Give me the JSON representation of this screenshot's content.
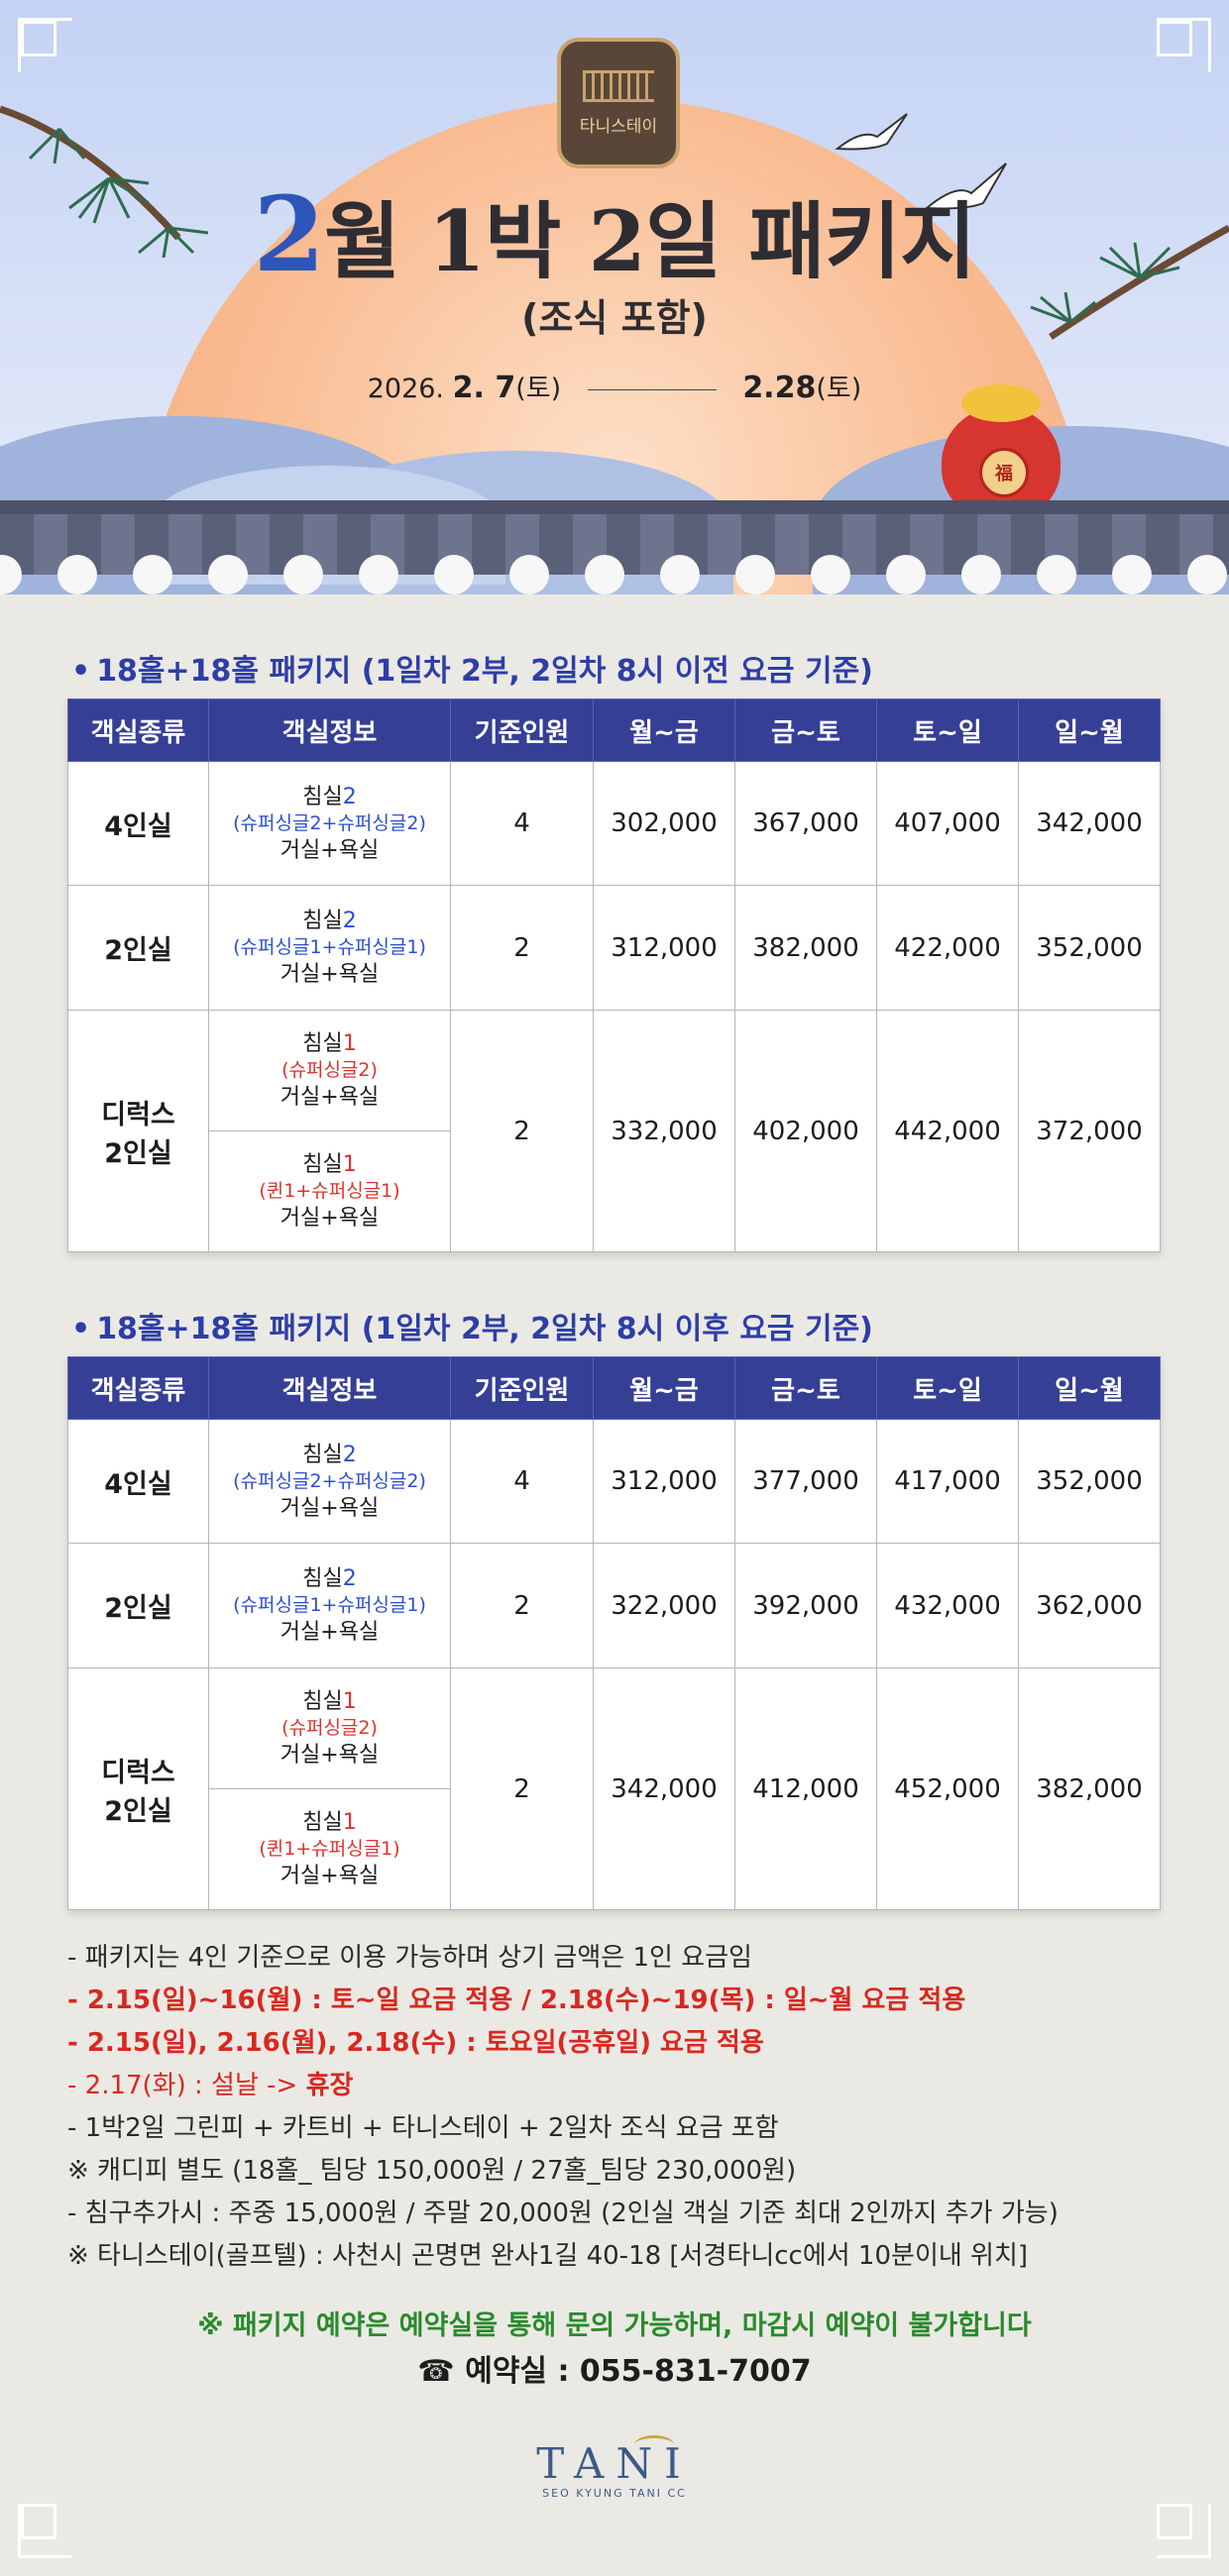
{
  "header": {
    "logo_text": "타니스테이",
    "title_num": "2",
    "title_rest": "월 1박 2일 패키지",
    "subtitle": "(조식 포함)",
    "date_start_prefix": "2026.",
    "date_start": "2. 7",
    "date_start_day": "(토)",
    "date_end": "2.28",
    "date_end_day": "(토)",
    "pouch_label": "福"
  },
  "table_headers": [
    "객실종류",
    "객실정보",
    "기준인원",
    "월~금",
    "금~토",
    "토~일",
    "일~월"
  ],
  "sections": [
    {
      "title": "18홀+18홀 패키지 (1일차 2부, 2일차 8시 이전 요금 기준)",
      "rows": [
        {
          "type": "4인실",
          "info_a": "침실",
          "info_n": "2",
          "info_sub": "(슈퍼싱글2+슈퍼싱글2)",
          "info_c": "거실+욕실",
          "people": "4",
          "prices": [
            "302,000",
            "367,000",
            "407,000",
            "342,000"
          ]
        },
        {
          "type": "2인실",
          "info_a": "침실",
          "info_n": "2",
          "info_sub": "(슈퍼싱글1+슈퍼싱글1)",
          "info_c": "거실+욕실",
          "people": "2",
          "prices": [
            "312,000",
            "382,000",
            "422,000",
            "352,000"
          ]
        },
        {
          "type_line1": "디럭스",
          "type_line2": "2인실",
          "info1_a": "침실",
          "info1_n": "1",
          "info1_sub": "(슈퍼싱글2)",
          "info1_c": "거실+욕실",
          "info2_a": "침실",
          "info2_n": "1",
          "info2_sub": "(퀸1+슈퍼싱글1)",
          "info2_c": "거실+욕실",
          "people": "2",
          "prices": [
            "332,000",
            "402,000",
            "442,000",
            "372,000"
          ]
        }
      ]
    },
    {
      "title": "18홀+18홀 패키지 (1일차 2부, 2일차 8시 이후 요금 기준)",
      "rows": [
        {
          "type": "4인실",
          "info_a": "침실",
          "info_n": "2",
          "info_sub": "(슈퍼싱글2+슈퍼싱글2)",
          "info_c": "거실+욕실",
          "people": "4",
          "prices": [
            "312,000",
            "377,000",
            "417,000",
            "352,000"
          ]
        },
        {
          "type": "2인실",
          "info_a": "침실",
          "info_n": "2",
          "info_sub": "(슈퍼싱글1+슈퍼싱글1)",
          "info_c": "거실+욕실",
          "people": "2",
          "prices": [
            "322,000",
            "392,000",
            "432,000",
            "362,000"
          ]
        },
        {
          "type_line1": "디럭스",
          "type_line2": "2인실",
          "info1_a": "침실",
          "info1_n": "1",
          "info1_sub": "(슈퍼싱글2)",
          "info1_c": "거실+욕실",
          "info2_a": "침실",
          "info2_n": "1",
          "info2_sub": "(퀸1+슈퍼싱글1)",
          "info2_c": "거실+욕실",
          "people": "2",
          "prices": [
            "342,000",
            "412,000",
            "452,000",
            "382,000"
          ]
        }
      ]
    }
  ],
  "notes": {
    "n1": "- 패키지는 4인 기준으로 이용 가능하며 상기 금액은 1인 요금임",
    "n2": "- 2.15(일)~16(월) : 토~일 요금 적용 / 2.18(수)~19(목) : 일~월 요금 적용",
    "n3": "- 2.15(일), 2.16(월), 2.18(수) : 토요일(공휴일) 요금 적용",
    "n4a": "- 2.17(화) : 설날 -> ",
    "n4b": "휴장",
    "n5": "- 1박2일 그린피 + 카트비 + 타니스테이 + 2일차 조식 요금 포함",
    "n6": "※ 캐디피 별도 (18홀_ 팀당 150,000원 / 27홀_팀당 230,000원)",
    "n7": " - 침구추가시 : 주중 15,000원 / 주말 20,000원 (2인실 객실 기준 최대 2인까지 추가 가능)",
    "n8": "※ 타니스테이(골프텔) : 사천시 곤명면 완사1길 40-18 [서경타니cc에서 10분이내 위치]"
  },
  "footer": {
    "note": "※ 패키지 예약은 예약실을 통해 문의 가능하며, 마감시 예약이 불가합니다",
    "phone_icon": "☎",
    "phone": "예약실 : 055-831-7007",
    "brand": "TANI",
    "brand_sub": "SEO KYUNG TANI CC"
  }
}
